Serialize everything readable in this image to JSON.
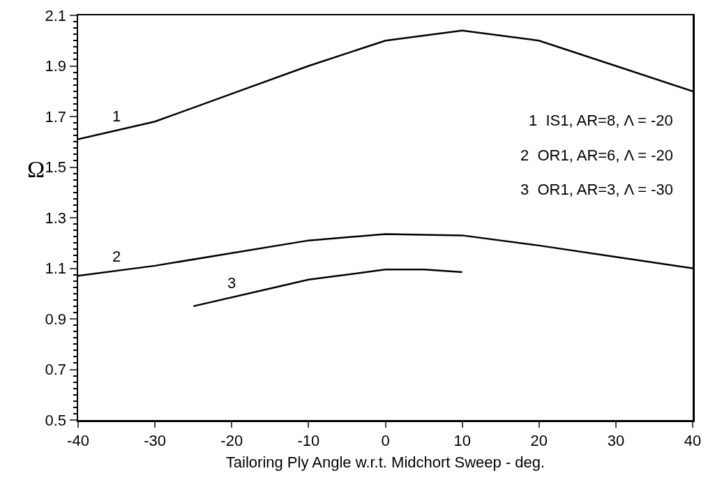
{
  "chart_data": {
    "type": "line",
    "xlabel": "Tailoring Ply Angle w.r.t. Midchort Sweep - deg.",
    "ylabel": "Ω",
    "xlim": [
      -40,
      40
    ],
    "xticks": [
      -40,
      -30,
      -20,
      -10,
      0,
      10,
      20,
      30,
      40
    ],
    "ylim": [
      0.5,
      2.1
    ],
    "yticks": [
      0.5,
      0.7,
      0.9,
      1.1,
      1.3,
      1.5,
      1.7,
      1.9,
      2.1
    ],
    "grid": false,
    "marker": "none",
    "line_style": "solid",
    "series": [
      {
        "name": "1",
        "color": "#000000",
        "x": [
          -40,
          -30,
          -20,
          -10,
          0,
          10,
          20,
          30,
          40
        ],
        "values": [
          1.61,
          1.68,
          1.79,
          1.9,
          2.0,
          2.04,
          2.0,
          1.9,
          1.8
        ]
      },
      {
        "name": "2",
        "color": "#000000",
        "x": [
          -40,
          -30,
          -20,
          -10,
          0,
          10,
          20,
          30,
          40
        ],
        "values": [
          1.07,
          1.11,
          1.16,
          1.21,
          1.235,
          1.23,
          1.19,
          1.145,
          1.1
        ]
      },
      {
        "name": "3",
        "color": "#000000",
        "x": [
          -25,
          -15,
          -10,
          0,
          5,
          10
        ],
        "values": [
          0.95,
          1.02,
          1.055,
          1.095,
          1.095,
          1.085
        ]
      }
    ],
    "annotations": [
      "1  IS1, AR=8, Λ = -20",
      "2  OR1, AR=6, Λ = -20",
      "3  OR1, AR=3, Λ = -30"
    ]
  }
}
